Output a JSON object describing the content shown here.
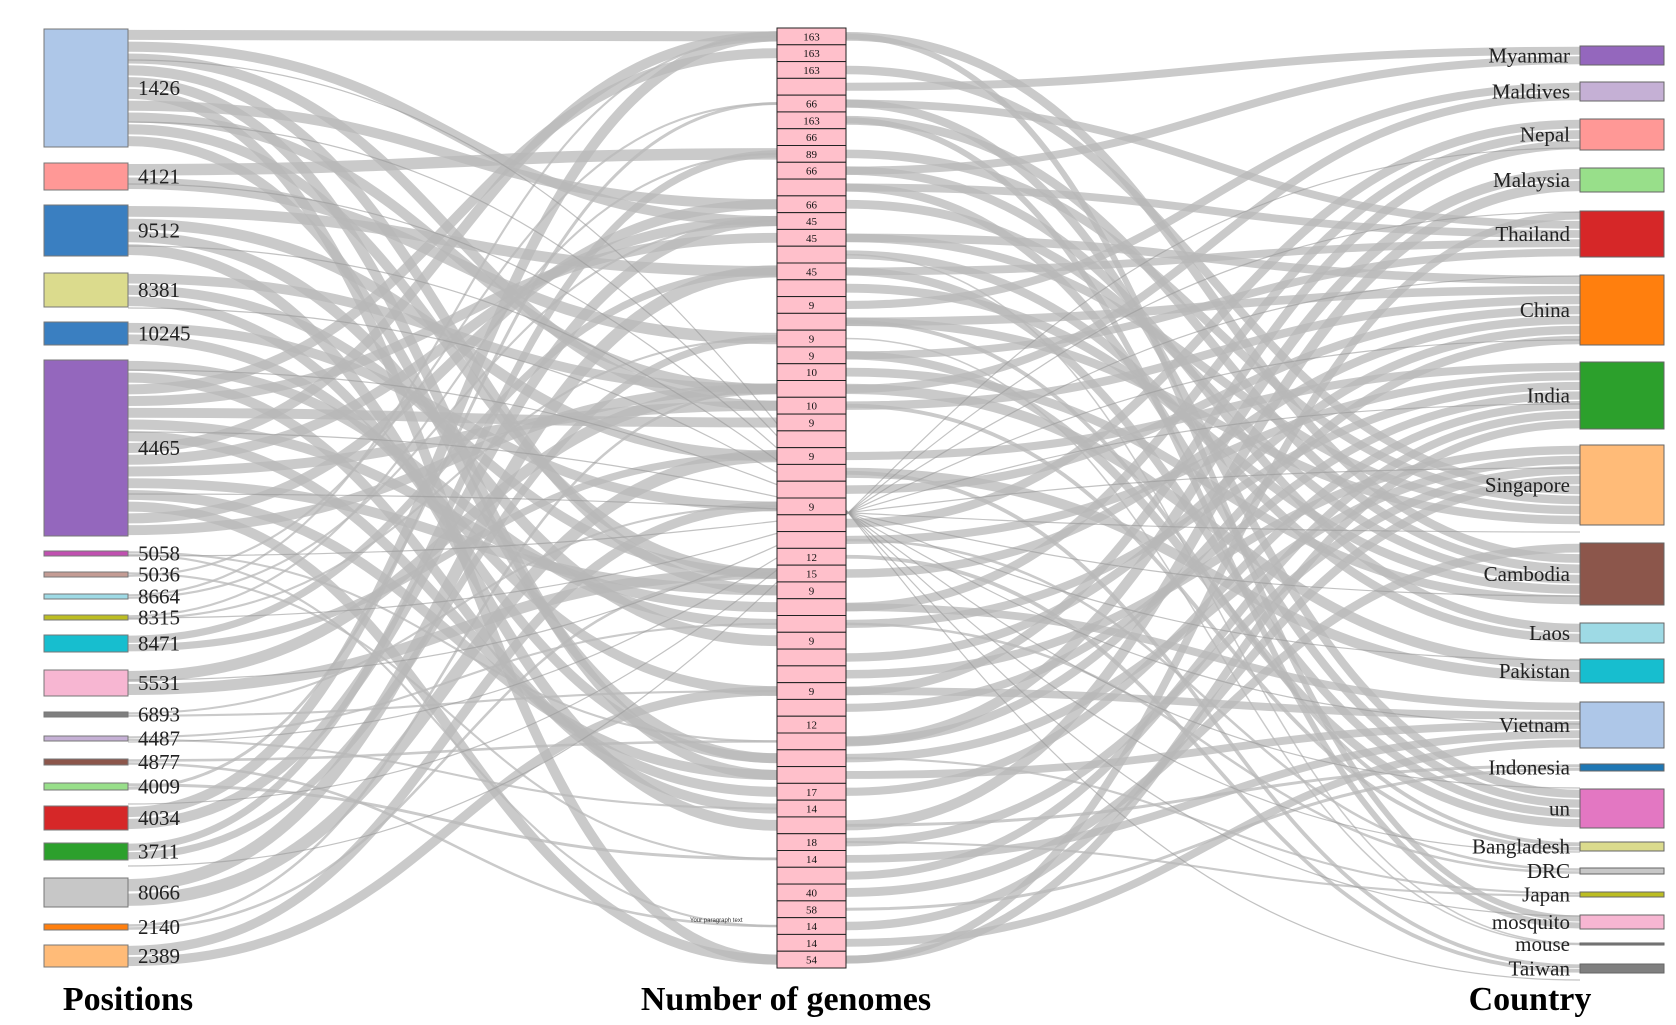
{
  "titles": {
    "positions": "Positions",
    "genomes": "Number of genomes",
    "country": "Country"
  },
  "note": "Your paragraph text",
  "positions": [
    {
      "label": "1426",
      "color": "#aec7e8"
    },
    {
      "label": "4121",
      "color": "#ff9896"
    },
    {
      "label": "9512",
      "color": "#3a7fc1"
    },
    {
      "label": "8381",
      "color": "#dbdb8d"
    },
    {
      "label": "10245",
      "color": "#3a7fc1"
    },
    {
      "label": "4465",
      "color": "#9467bd"
    },
    {
      "label": "5058",
      "color": "#c050b0"
    },
    {
      "label": "5036",
      "color": "#c49c94"
    },
    {
      "label": "8664",
      "color": "#9edae5"
    },
    {
      "label": "8315",
      "color": "#bcbd22"
    },
    {
      "label": "8471",
      "color": "#17becf"
    },
    {
      "label": "5531",
      "color": "#f7b6d2"
    },
    {
      "label": "6893",
      "color": "#7f7f7f"
    },
    {
      "label": "4487",
      "color": "#c5b0d5"
    },
    {
      "label": "4877",
      "color": "#8c564b"
    },
    {
      "label": "4009",
      "color": "#98df8a"
    },
    {
      "label": "4034",
      "color": "#d62728"
    },
    {
      "label": "3711",
      "color": "#2ca02c"
    },
    {
      "label": "8066",
      "color": "#c7c7c7"
    },
    {
      "label": "2140",
      "color": "#ff7f0e"
    },
    {
      "label": "2389",
      "color": "#ffbb78"
    }
  ],
  "countries": [
    {
      "label": "Myanmar",
      "color": "#9467bd"
    },
    {
      "label": "Maldives",
      "color": "#c5b0d5"
    },
    {
      "label": "Nepal",
      "color": "#ff9896"
    },
    {
      "label": "Malaysia",
      "color": "#98df8a"
    },
    {
      "label": "Thailand",
      "color": "#d62728"
    },
    {
      "label": "China",
      "color": "#ff7f0e"
    },
    {
      "label": "India",
      "color": "#2ca02c"
    },
    {
      "label": "Singapore",
      "color": "#ffbb78"
    },
    {
      "label": "Cambodia",
      "color": "#8c564b"
    },
    {
      "label": "Laos",
      "color": "#9edae5"
    },
    {
      "label": "Pakistan",
      "color": "#17becf"
    },
    {
      "label": "Vietnam",
      "color": "#aec7e8"
    },
    {
      "label": "Indonesia",
      "color": "#1f77b4"
    },
    {
      "label": "un",
      "color": "#e377c2"
    },
    {
      "label": "Bangladesh",
      "color": "#dbdb8d"
    },
    {
      "label": "DRC",
      "color": "#c7c7c7"
    },
    {
      "label": "Japan",
      "color": "#bcbd22"
    },
    {
      "label": "mosquito",
      "color": "#f7b6d2"
    },
    {
      "label": "mouse",
      "color": "#7f7f7f"
    },
    {
      "label": "Taiwan",
      "color": "#7f7f7f"
    }
  ],
  "genome_nodes": [
    "163",
    "163",
    "163",
    "",
    "66",
    "163",
    "66",
    "89",
    "66",
    "",
    "66",
    "45",
    "45",
    "",
    "45",
    "",
    "9",
    "",
    "9",
    "9",
    "10",
    "",
    "10",
    "9",
    "",
    "9",
    "",
    "",
    "9",
    "",
    "",
    "12",
    "15",
    "9",
    "",
    "",
    "9",
    "",
    "",
    "9",
    "",
    "12",
    "",
    "",
    "",
    "17",
    "14",
    "",
    "18",
    "14",
    "",
    "40",
    "58",
    "14",
    "14",
    "54"
  ],
  "node_fill": "#ffc0cb",
  "link_color": "#b8b8b8"
}
